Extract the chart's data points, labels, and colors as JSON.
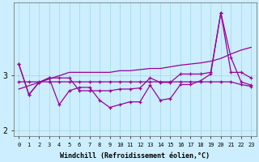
{
  "xlabel": "Windchill (Refroidissement éolien,°C)",
  "background_color": "#cceeff",
  "grid_color": "#aadddd",
  "line_color": "#990099",
  "x": [
    0,
    1,
    2,
    3,
    4,
    5,
    6,
    7,
    8,
    9,
    10,
    11,
    12,
    13,
    14,
    15,
    16,
    17,
    18,
    19,
    20,
    21,
    22,
    23
  ],
  "line_ascending": [
    2.75,
    2.81,
    2.87,
    2.93,
    2.99,
    3.05,
    3.05,
    3.05,
    3.05,
    3.05,
    3.08,
    3.08,
    3.1,
    3.12,
    3.12,
    3.15,
    3.18,
    3.2,
    3.22,
    3.25,
    3.3,
    3.38,
    3.45,
    3.5
  ],
  "line_flat": [
    2.88,
    2.88,
    2.88,
    2.88,
    2.88,
    2.88,
    2.88,
    2.88,
    2.88,
    2.88,
    2.88,
    2.88,
    2.88,
    2.88,
    2.88,
    2.88,
    2.88,
    2.88,
    2.88,
    2.88,
    2.88,
    2.88,
    2.83,
    2.8
  ],
  "line_volatile": [
    3.2,
    2.65,
    2.87,
    2.95,
    2.47,
    2.72,
    2.78,
    2.78,
    2.55,
    2.42,
    2.47,
    2.52,
    2.52,
    2.82,
    2.55,
    2.58,
    2.83,
    2.83,
    2.9,
    3.02,
    4.12,
    3.32,
    2.88,
    2.82
  ],
  "line_envelope": [
    3.2,
    2.65,
    2.87,
    2.95,
    2.95,
    2.95,
    2.72,
    2.72,
    2.72,
    2.72,
    2.75,
    2.75,
    2.77,
    2.95,
    2.87,
    2.87,
    3.02,
    3.02,
    3.02,
    3.05,
    4.12,
    3.05,
    3.05,
    2.95
  ],
  "ylim": [
    1.9,
    4.3
  ],
  "yticks": [
    2,
    3
  ],
  "xlim": [
    -0.5,
    23.5
  ]
}
